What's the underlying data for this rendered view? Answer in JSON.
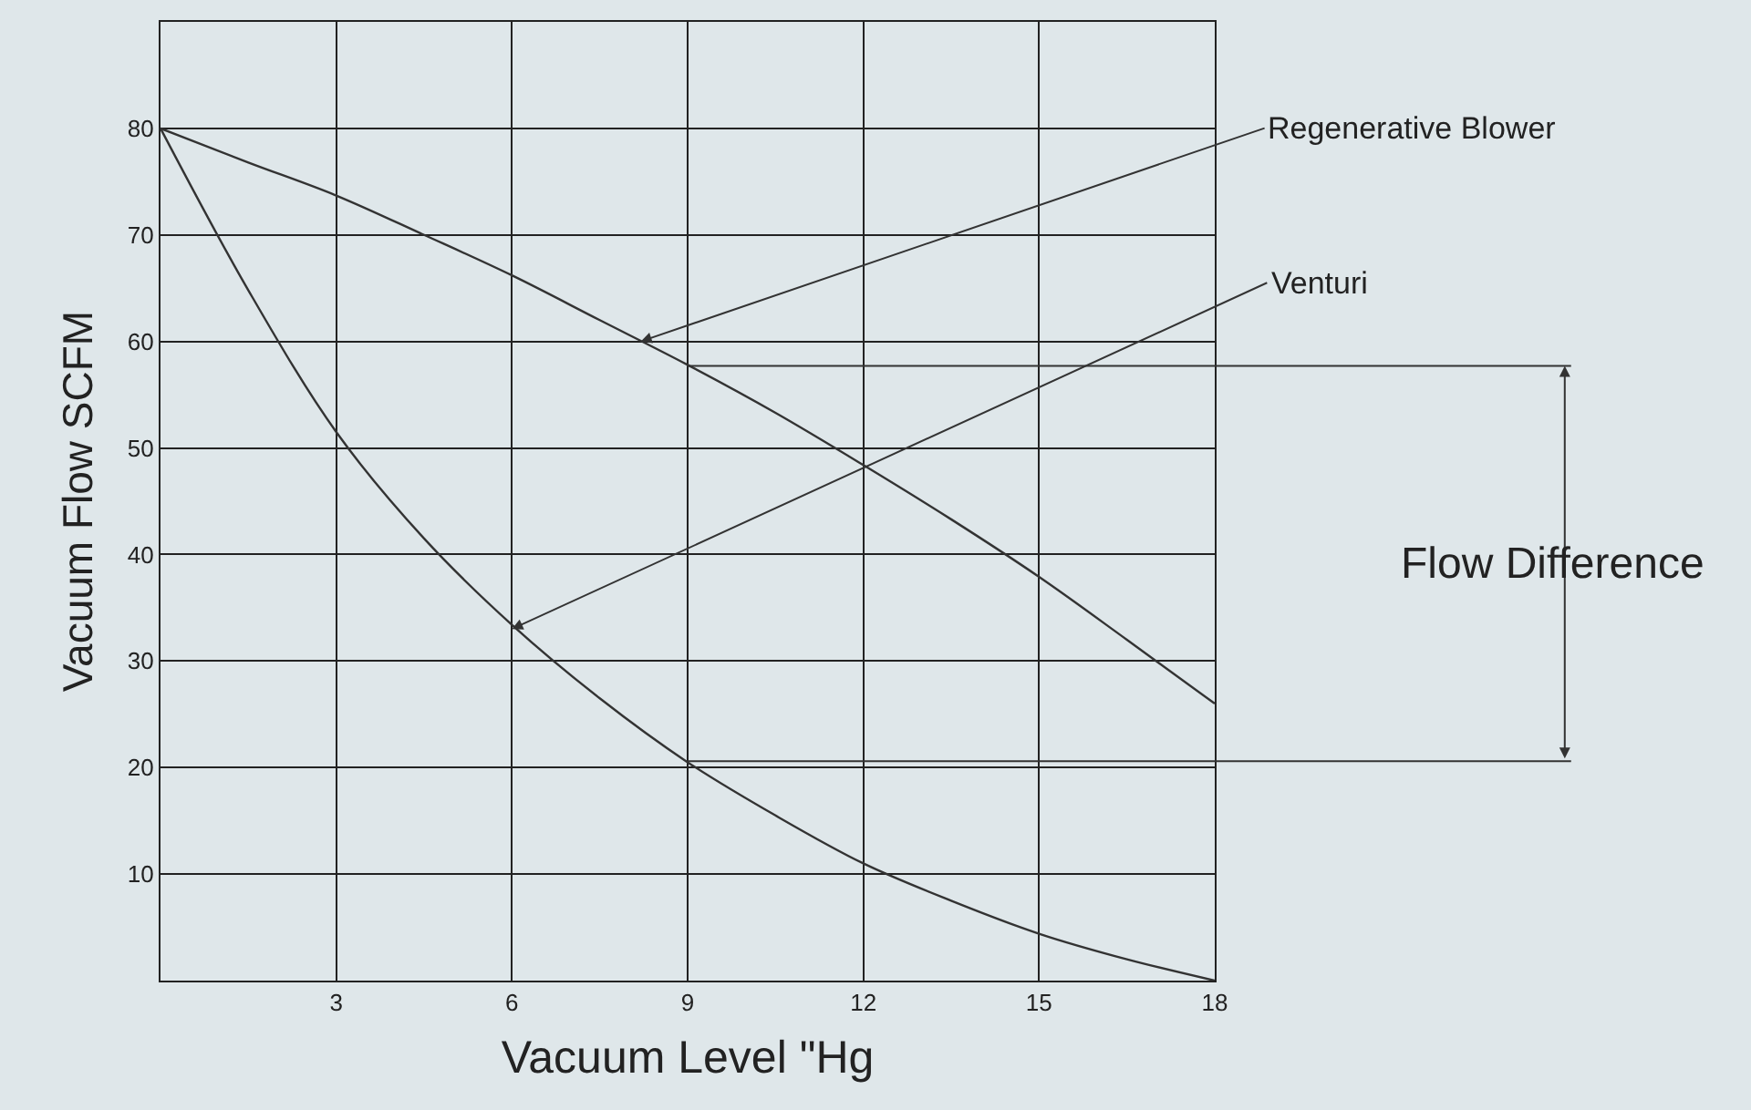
{
  "chart_data": {
    "type": "line",
    "xlabel": "Vacuum Level \"Hg",
    "ylabel": "Vacuum Flow SCFM",
    "x": [
      0,
      1.5,
      3,
      4.5,
      6,
      7.5,
      9,
      10.5,
      12,
      13.5,
      15,
      16.5,
      18
    ],
    "series": [
      {
        "color": "#333333",
        "values": [
          80,
          76.8,
          73.7,
          70,
          66.2,
          62,
          57.8,
          53.3,
          48.4,
          43.3,
          37.9,
          32,
          26
        ]
      },
      {
        "color": "#333333",
        "values": [
          80,
          64.8,
          51.5,
          41.5,
          33.4,
          26.5,
          20.5,
          15.5,
          11,
          7.5,
          4.4,
          2,
          0
        ]
      }
    ],
    "xlim": [
      0,
      18
    ],
    "ylim": [
      0,
      90
    ],
    "xticks": [
      3,
      6,
      9,
      12,
      15,
      18
    ],
    "yticks": [
      10,
      20,
      30,
      40,
      50,
      60,
      70,
      80
    ],
    "grid": true,
    "marker": "none",
    "line_style": "solid",
    "annotations": [
      {
        "text": "Regenerative Blower",
        "x": 8.2,
        "y": 60
      },
      {
        "text": "Venturi",
        "x": 6,
        "y": 33
      }
    ],
    "ref_lines": [
      {
        "axis": "y",
        "value": 57.7,
        "label": "Flow Difference",
        "color": "#333333"
      },
      {
        "axis": "y",
        "value": 20.6,
        "color": "#333333"
      }
    ]
  }
}
